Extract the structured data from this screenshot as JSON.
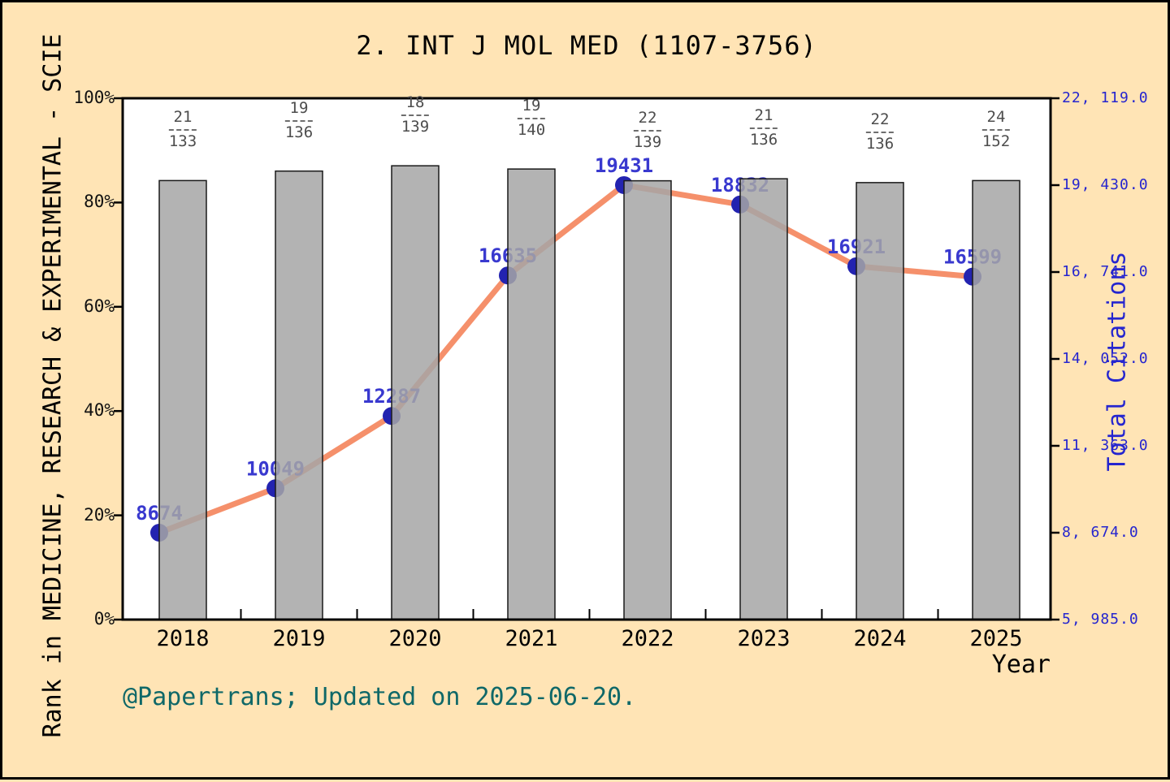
{
  "chart": {
    "title": "2. INT J MOL MED (1107-3756)",
    "x_axis_label": "Year",
    "left_axis_label": "Rank in MEDICINE, RESEARCH & EXPERIMENTAL - SCIE",
    "right_axis_label": "Total Citations",
    "footer": "@Papertrans; Updated on 2025-06-20."
  },
  "chart_data": {
    "type": "combo: bar (rank percentile, left axis) + line (total citations, right axis)",
    "title": "2. INT J MOL MED (1107-3756)",
    "xlabel": "Year",
    "categories": [
      "2018",
      "2019",
      "2020",
      "2021",
      "2022",
      "2023",
      "2024",
      "2025"
    ],
    "series": [
      {
        "name": "Rank in MEDICINE, RESEARCH & EXPERIMENTAL - SCIE (bars)",
        "type": "bar",
        "axis": "left",
        "rank": [
          21,
          19,
          18,
          19,
          22,
          21,
          22,
          24
        ],
        "category_size": [
          133,
          136,
          139,
          140,
          139,
          136,
          136,
          152
        ],
        "fraction_labels": [
          "21/133",
          "19/136",
          "18/139",
          "19/140",
          "22/139",
          "21/136",
          "22/136",
          "24/152"
        ],
        "percentile_values": [
          84.2,
          86.0,
          87.1,
          86.4,
          84.2,
          84.6,
          83.8,
          84.2
        ]
      },
      {
        "name": "Total Citations (line)",
        "type": "line",
        "axis": "right",
        "values": [
          8674,
          10049,
          12287,
          16635,
          19431,
          18832,
          16921,
          16599
        ]
      }
    ],
    "left_axis": {
      "ticks": [
        "0%",
        "20%",
        "40%",
        "60%",
        "80%",
        "100%"
      ],
      "tick_values": [
        0,
        20,
        40,
        60,
        80,
        100
      ],
      "range": [
        0,
        100
      ]
    },
    "right_axis": {
      "ticks": [
        "5, 985.0",
        "8, 674.0",
        "11, 363.0",
        "14, 052.0",
        "16, 741.0",
        "19, 430.0",
        "22, 119.0"
      ],
      "tick_values": [
        5985,
        8674,
        11363,
        14052,
        16741,
        19430,
        22119
      ],
      "range": [
        5985,
        22119
      ]
    },
    "grid": "off",
    "legend": "none",
    "colors": {
      "background": "#ffe4b5",
      "plot_background": "#ffffff",
      "bar_fill": "#a6a6a6",
      "bar_edge": "#1a1a1a",
      "line": "#f5906b",
      "marker": "#2323b0",
      "value_label": "#3939cf",
      "right_axis_text": "#2525cf",
      "fraction_text": "#4d4d4d",
      "footer_text": "#0f6868"
    }
  }
}
